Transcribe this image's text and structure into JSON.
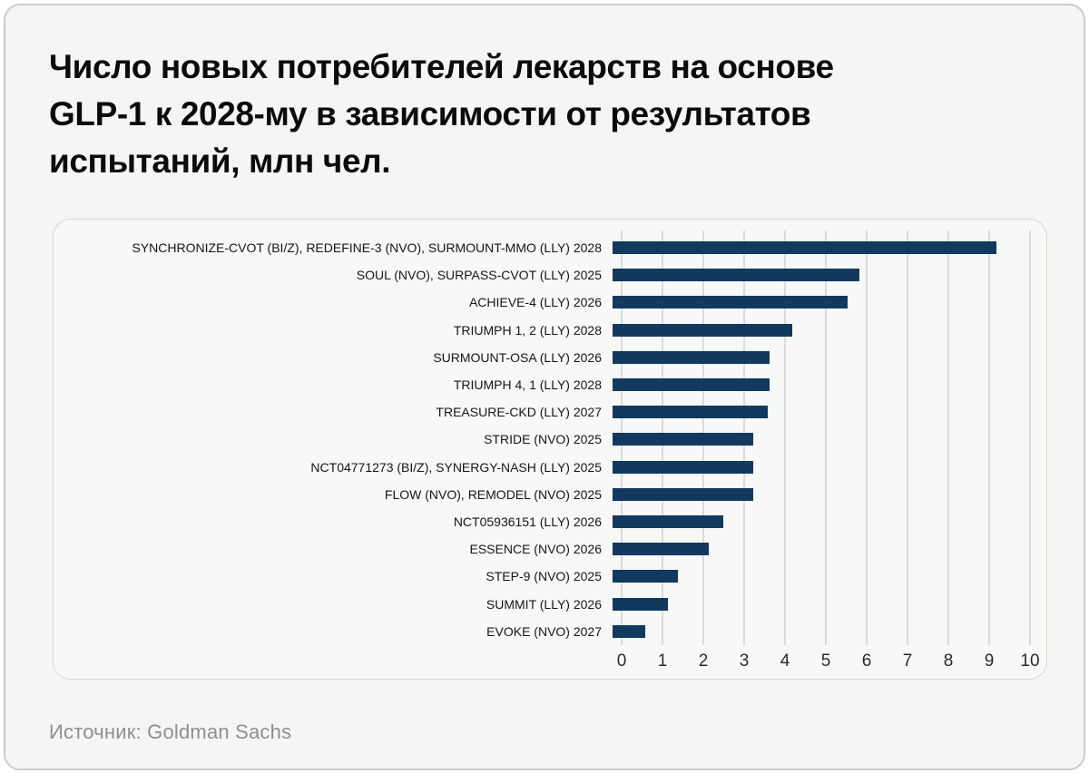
{
  "title": {
    "lines": [
      "Число новых потребителей лекарств на основе",
      "GLP-1 к 2028-му в зависимости от результатов",
      "испытаний, млн чел."
    ]
  },
  "source": {
    "label": "Источник: Goldman Sachs"
  },
  "colors": {
    "bar": "#12395e",
    "page_bg": "#f5f5f3",
    "card_bg": "#f7f8f8",
    "card_border": "#d6d7d5",
    "gridline": "#d9dbdc",
    "title_text": "#0b0b0b",
    "label_text": "#161616",
    "tick_text": "#2b2b2b",
    "source_text": "#8f8f8f"
  },
  "chart_data": {
    "type": "bar",
    "orientation": "horizontal",
    "title": "Число новых потребителей лекарств на основе GLP-1 к 2028-му в зависимости от результатов испытаний, млн чел.",
    "unit": "млн чел.",
    "source": "Goldman Sachs",
    "categories": [
      "SYNCHRONIZE-CVOT (BI/Z), REDEFINE-3 (NVO), SURMOUNT-MMO (LLY) 2028",
      "SOUL (NVO), SURPASS-CVOT (LLY) 2025",
      "ACHIEVE-4 (LLY) 2026",
      "TRIUMPH 1, 2 (LLY) 2028",
      "SURMOUNT-OSA (LLY) 2026",
      "TRIUMPH 4, 1 (LLY) 2028",
      "TREASURE-CKD (LLY) 2027",
      "STRIDE (NVO) 2025",
      "NCT04771273 (BI/Z), SYNERGY-NASH (LLY) 2025",
      "FLOW (NVO), REMODEL (NVO) 2025",
      "NCT05936151 (LLY) 2026",
      "ESSENCE (NVO) 2026",
      "STEP-9 (NVO) 2025",
      "SUMMIT (LLY) 2026",
      "EVOKE (NVO) 2027"
    ],
    "values": [
      9.4,
      6.05,
      5.75,
      4.4,
      3.85,
      3.85,
      3.8,
      3.45,
      3.45,
      3.45,
      2.7,
      2.35,
      1.6,
      1.35,
      0.8
    ],
    "xlim": [
      0,
      10
    ],
    "xticks": [
      0,
      1,
      2,
      3,
      4,
      5,
      6,
      7,
      8,
      9,
      10
    ],
    "grid": "vertical",
    "legend": null
  }
}
